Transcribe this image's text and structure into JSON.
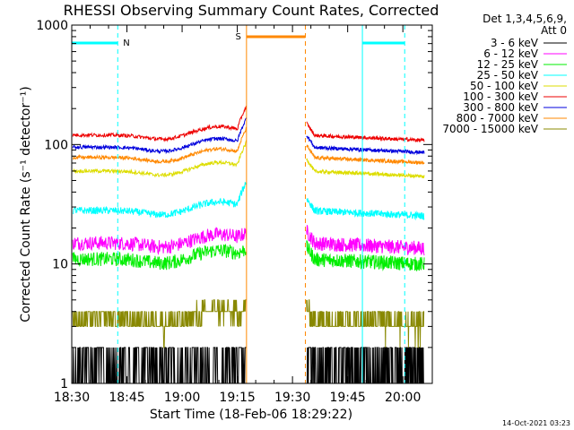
{
  "chart_data": {
    "type": "line",
    "title": "RHESSI Observing Summary Count Rates, Corrected",
    "xlabel": "Start Time (18-Feb-06 18:29:22)",
    "ylabel": "Corrected Count Rate (s⁻¹ detector⁻¹)",
    "yscale": "log",
    "ylim": [
      1,
      1000
    ],
    "xlim_minutes": [
      0,
      98
    ],
    "x_start_time": "18:30",
    "x_ticks": [
      {
        "label": "18:30",
        "minute": 0
      },
      {
        "label": "18:45",
        "minute": 15
      },
      {
        "label": "19:00",
        "minute": 30
      },
      {
        "label": "19:15",
        "minute": 45
      },
      {
        "label": "19:30",
        "minute": 60
      },
      {
        "label": "19:45",
        "minute": 75
      },
      {
        "label": "20:00",
        "minute": 90
      }
    ],
    "y_ticks": [
      {
        "label": "1",
        "value": 1
      },
      {
        "label": "10",
        "value": 10
      },
      {
        "label": "100",
        "value": 100
      },
      {
        "label": "1000",
        "value": 1000
      }
    ],
    "legend_header": [
      "Det 1,3,4,5,6,9,",
      "Att 0"
    ],
    "data_gap_minutes": [
      47.5,
      63.5
    ],
    "series": [
      {
        "name": "3 - 6 keV",
        "color": "#000000",
        "level": 1.5,
        "noise": 0.6
      },
      {
        "name": "6 - 12 keV",
        "color": "#ff00ff",
        "level": 15,
        "noise": 0.12
      },
      {
        "name": "12 - 25 keV",
        "color": "#00ee00",
        "level": 11,
        "noise": 0.12
      },
      {
        "name": "25 - 50 keV",
        "color": "#00ffff",
        "level": 28,
        "noise": 0.06
      },
      {
        "name": "50 - 100 keV",
        "color": "#dddd00",
        "level": 60,
        "noise": 0.03
      },
      {
        "name": "100 - 300 keV",
        "color": "#ee0000",
        "level": 120,
        "noise": 0.03
      },
      {
        "name": "300 - 800 keV",
        "color": "#0000dd",
        "level": 95,
        "noise": 0.03
      },
      {
        "name": "800 - 7000 keV",
        "color": "#ff8800",
        "level": 78,
        "noise": 0.03
      },
      {
        "name": "7000 - 15000 keV",
        "color": "#888800",
        "level": 3.5,
        "noise": 0.18
      }
    ],
    "annotations": [
      {
        "label": "N",
        "type": "night",
        "color": "#00ffff",
        "start_minute": 0,
        "end_minute": 12.5
      },
      {
        "label": "S",
        "type": "saa",
        "color": "#ff8800",
        "start_minute": 47.5,
        "end_minute": 63.5
      },
      {
        "label": "",
        "type": "night",
        "color": "#00ffff",
        "start_minute": 79,
        "end_minute": 90.5
      }
    ]
  },
  "footer": {
    "timestamp": "14-Oct-2021 03:23"
  }
}
